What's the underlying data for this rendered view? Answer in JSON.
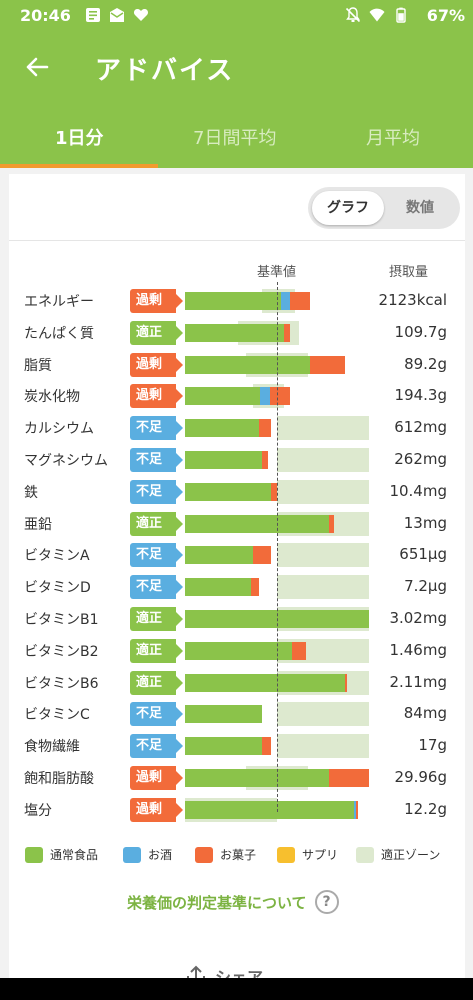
{
  "status": {
    "time": "20:46",
    "battery": "67%",
    "left_icons": [
      "notes-icon",
      "mail-icon",
      "heart-icon"
    ],
    "right_icons": [
      "bell-off-icon",
      "wifi-icon",
      "battery-icon"
    ]
  },
  "appbar": {
    "title": "アドバイス"
  },
  "tabs": [
    {
      "label": "1日分",
      "active": true
    },
    {
      "label": "7日間平均",
      "active": false
    },
    {
      "label": "月平均",
      "active": false
    }
  ],
  "toggle": {
    "graph": "グラフ",
    "numeric": "数値",
    "selected": "graph"
  },
  "columns": {
    "standard": "基準値",
    "intake": "摂取量"
  },
  "colors": {
    "normal_food": "#8bc34a",
    "alcohol": "#5aaee0",
    "snack": "#f26b3a",
    "supplement": "#f7bf2e",
    "zone": "#dde9cf",
    "over_badge": "#f26b3a",
    "ok_badge": "#8bc34a",
    "under_badge": "#5aaee0"
  },
  "nutrients": [
    {
      "name": "エネルギー",
      "status": "over",
      "status_label": "過剰",
      "value": "2123kcal",
      "zone": [
        0.42,
        0.6
      ],
      "normal": 0.52,
      "alcohol": 0.05,
      "snack": 0.11,
      "supplement": 0
    },
    {
      "name": "たんぱく質",
      "status": "ok",
      "status_label": "適正",
      "value": "109.7g",
      "zone": [
        0.29,
        0.62
      ],
      "normal": 0.54,
      "alcohol": 0,
      "snack": 0.03,
      "supplement": 0
    },
    {
      "name": "脂質",
      "status": "over",
      "status_label": "過剰",
      "value": "89.2g",
      "zone": [
        0.33,
        0.67
      ],
      "normal": 0.68,
      "alcohol": 0,
      "snack": 0.19,
      "supplement": 0
    },
    {
      "name": "炭水化物",
      "status": "over",
      "status_label": "過剰",
      "value": "194.3g",
      "zone": [
        0.37,
        0.54
      ],
      "normal": 0.41,
      "alcohol": 0.05,
      "snack": 0.11,
      "supplement": 0
    },
    {
      "name": "カルシウム",
      "status": "under",
      "status_label": "不足",
      "value": "612mg",
      "zone": [
        0.5,
        1.0
      ],
      "normal": 0.4,
      "alcohol": 0,
      "snack": 0.07,
      "supplement": 0
    },
    {
      "name": "マグネシウム",
      "status": "under",
      "status_label": "不足",
      "value": "262mg",
      "zone": [
        0.5,
        1.0
      ],
      "normal": 0.42,
      "alcohol": 0,
      "snack": 0.03,
      "supplement": 0
    },
    {
      "name": "鉄",
      "status": "under",
      "status_label": "不足",
      "value": "10.4mg",
      "zone": [
        0.5,
        1.0
      ],
      "normal": 0.47,
      "alcohol": 0,
      "snack": 0.03,
      "supplement": 0
    },
    {
      "name": "亜鉛",
      "status": "ok",
      "status_label": "適正",
      "value": "13mg",
      "zone": [
        0.5,
        1.0
      ],
      "normal": 0.78,
      "alcohol": 0,
      "snack": 0.03,
      "supplement": 0
    },
    {
      "name": "ビタミンA",
      "status": "under",
      "status_label": "不足",
      "value": "651μg",
      "zone": [
        0.5,
        1.0
      ],
      "normal": 0.37,
      "alcohol": 0,
      "snack": 0.1,
      "supplement": 0
    },
    {
      "name": "ビタミンD",
      "status": "under",
      "status_label": "不足",
      "value": "7.2μg",
      "zone": [
        0.5,
        1.0
      ],
      "normal": 0.36,
      "alcohol": 0,
      "snack": 0.04,
      "supplement": 0
    },
    {
      "name": "ビタミンB1",
      "status": "ok",
      "status_label": "適正",
      "value": "3.02mg",
      "zone": [
        0.5,
        1.0
      ],
      "normal": 1.0,
      "alcohol": 0,
      "snack": 0,
      "supplement": 0
    },
    {
      "name": "ビタミンB2",
      "status": "ok",
      "status_label": "適正",
      "value": "1.46mg",
      "zone": [
        0.5,
        1.0
      ],
      "normal": 0.58,
      "alcohol": 0,
      "snack": 0.08,
      "supplement": 0
    },
    {
      "name": "ビタミンB6",
      "status": "ok",
      "status_label": "適正",
      "value": "2.11mg",
      "zone": [
        0.5,
        1.0
      ],
      "normal": 0.87,
      "alcohol": 0,
      "snack": 0.01,
      "supplement": 0
    },
    {
      "name": "ビタミンC",
      "status": "under",
      "status_label": "不足",
      "value": "84mg",
      "zone": [
        0.5,
        1.0
      ],
      "normal": 0.42,
      "alcohol": 0,
      "snack": 0,
      "supplement": 0
    },
    {
      "name": "食物繊維",
      "status": "under",
      "status_label": "不足",
      "value": "17g",
      "zone": [
        0.5,
        1.0
      ],
      "normal": 0.42,
      "alcohol": 0,
      "snack": 0.05,
      "supplement": 0
    },
    {
      "name": "飽和脂肪酸",
      "status": "over",
      "status_label": "過剰",
      "value": "29.96g",
      "zone": [
        0.33,
        0.67
      ],
      "normal": 0.78,
      "alcohol": 0,
      "snack": 0.22,
      "supplement": 0
    },
    {
      "name": "塩分",
      "status": "over",
      "status_label": "過剰",
      "value": "12.2g",
      "zone": [
        0,
        0.5
      ],
      "normal": 0.92,
      "alcohol": 0.01,
      "snack": 0.01,
      "supplement": 0
    }
  ],
  "legend": [
    {
      "label": "通常食品",
      "color": "#8bc34a"
    },
    {
      "label": "お酒",
      "color": "#5aaee0"
    },
    {
      "label": "お菓子",
      "color": "#f26b3a"
    },
    {
      "label": "サプリ",
      "color": "#f7bf2e"
    },
    {
      "label": "適正ゾーン",
      "color": "#dde9cf"
    }
  ],
  "criteria_link": "栄養価の判定基準について",
  "share_label": "シェア"
}
